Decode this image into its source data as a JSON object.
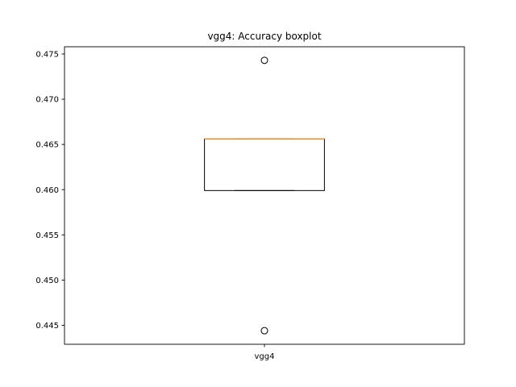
{
  "chart_data": {
    "type": "boxplot",
    "title": "vgg4: Accuracy boxplot",
    "xlabel": "",
    "ylabel": "",
    "categories": [
      "vgg4"
    ],
    "ylim": [
      0.4429,
      0.4758
    ],
    "yticks": [
      0.445,
      0.45,
      0.455,
      0.46,
      0.465,
      0.47,
      0.475
    ],
    "ytick_labels": [
      "0.445",
      "0.450",
      "0.455",
      "0.460",
      "0.465",
      "0.470",
      "0.475"
    ],
    "grid": false,
    "legend": "none",
    "boxes": [
      {
        "label": "vgg4",
        "whisker_low": 0.4599,
        "q1": 0.4599,
        "median": 0.4656,
        "q3": 0.4656,
        "whisker_high": 0.4656,
        "outliers": [
          0.4743,
          0.4444
        ]
      }
    ],
    "colors": {
      "box": "#000000",
      "median": "#ff7f0e",
      "outlier_edge": "#000000"
    }
  }
}
